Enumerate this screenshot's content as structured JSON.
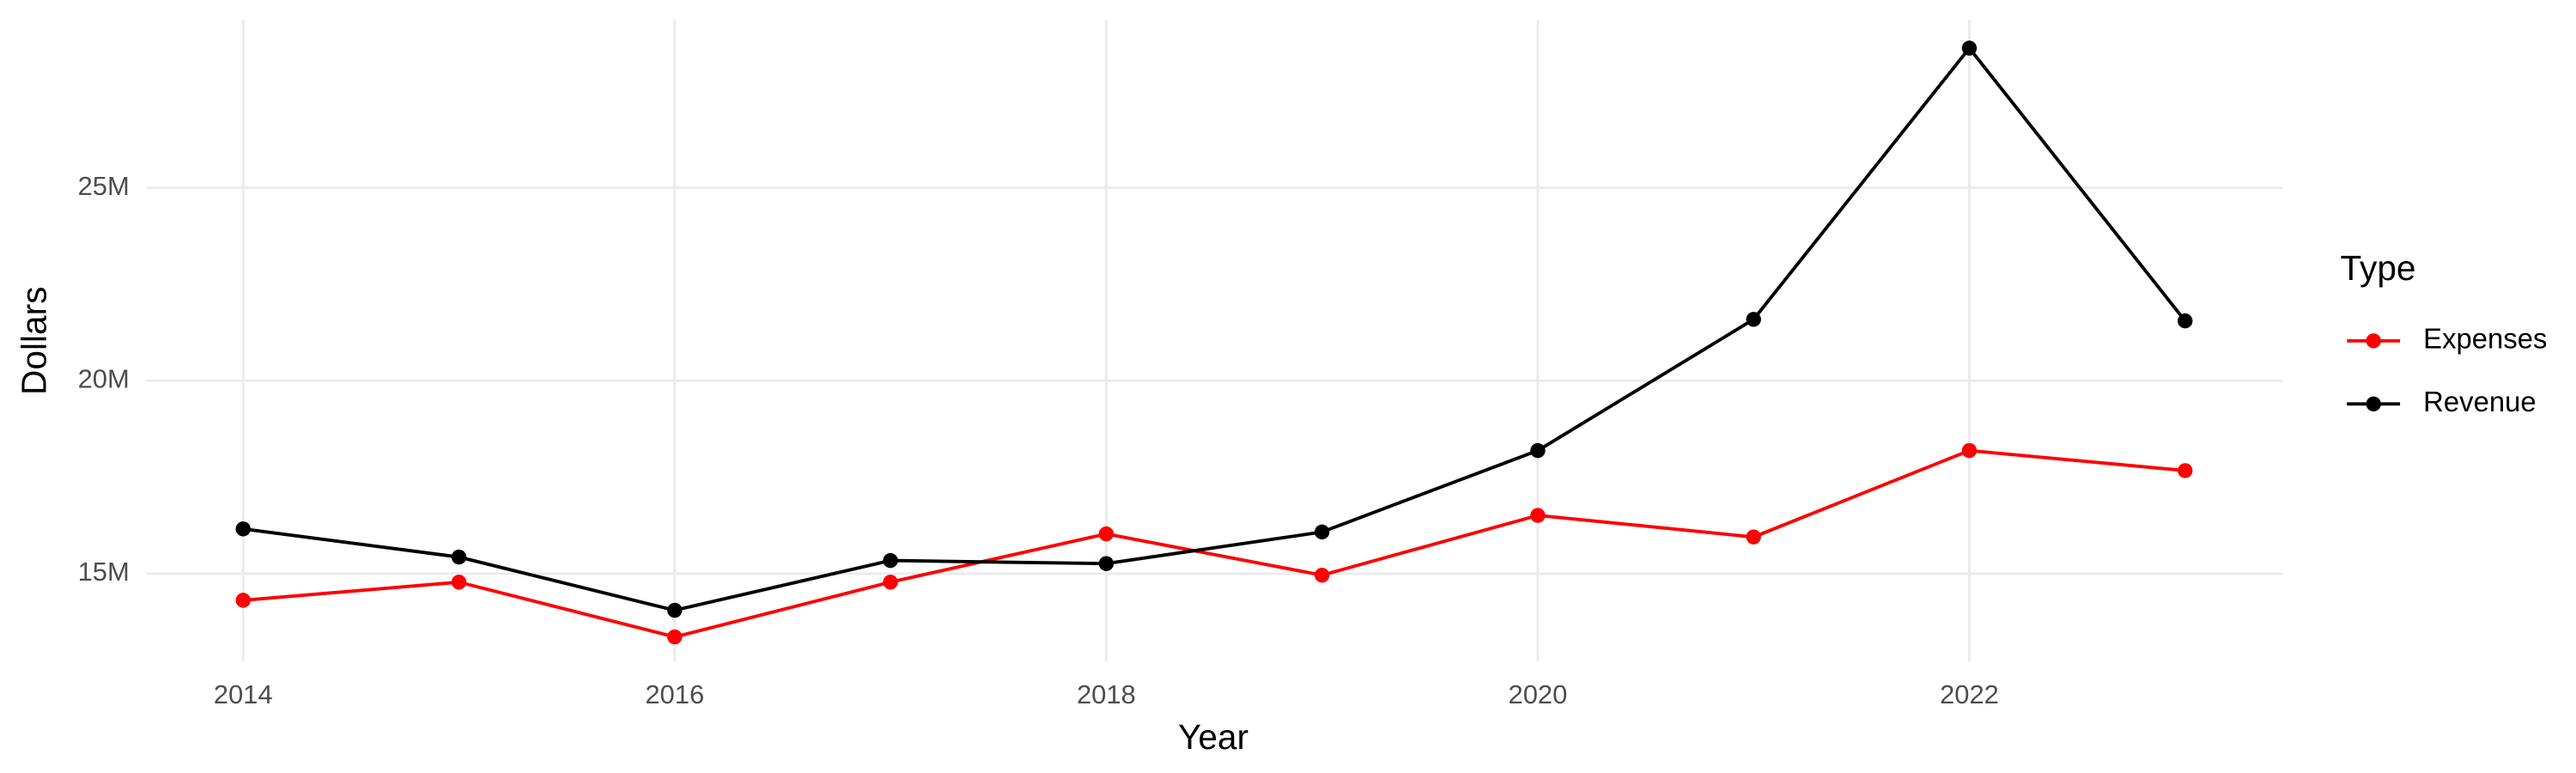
{
  "chart_data": {
    "type": "line",
    "x_label": "Year",
    "y_label": "Dollars",
    "x": [
      2014,
      2015,
      2016,
      2017,
      2018,
      2019,
      2020,
      2021,
      2022,
      2023
    ],
    "series": [
      {
        "name": "Expenses",
        "color": "#ff0000",
        "values": [
          14310000,
          14780000,
          13360000,
          14780000,
          16030000,
          14960000,
          16510000,
          15950000,
          18190000,
          17670000
        ]
      },
      {
        "name": "Revenue",
        "color": "#000000",
        "values": [
          16160000,
          15430000,
          14050000,
          15340000,
          15260000,
          16080000,
          18190000,
          21590000,
          28620000,
          21550000
        ]
      }
    ],
    "xlim": [
      2013.55,
      2023.45
    ],
    "xticks": [
      2014,
      2016,
      2018,
      2020,
      2022
    ],
    "ylim": [
      12720000,
      29350000
    ],
    "yticks": [
      {
        "value": 15000000,
        "label": "15M"
      },
      {
        "value": 20000000,
        "label": "20M"
      },
      {
        "value": 25000000,
        "label": "25M"
      }
    ],
    "grid": true,
    "legend_title": "Type",
    "legend_position": "right"
  }
}
